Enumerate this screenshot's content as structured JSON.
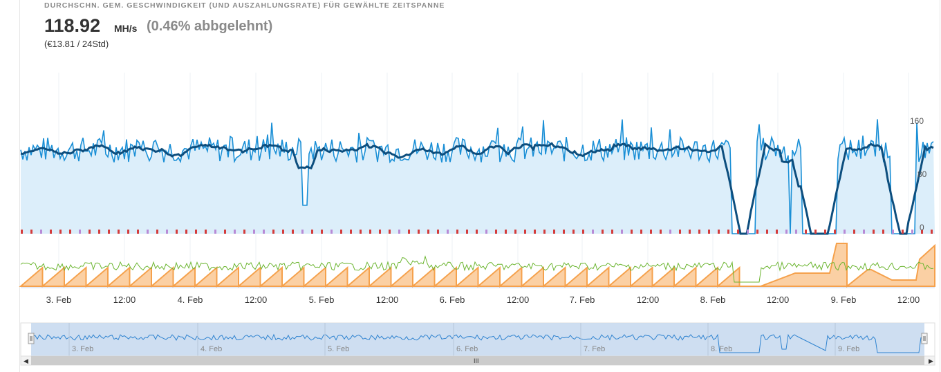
{
  "header": {
    "title": "DURCHSCHN. GEM. GESCHWINDIGKEIT (UND AUSZAHLUNGSRATE) FÜR GEWÄHLTE ZEITSPANNE",
    "speed_value": "118.92",
    "speed_unit": "MH/s",
    "rejected": "(0.46% abbgelehnt)",
    "payout": "(€13.81 / 24Std)"
  },
  "colors": {
    "hashrate_line": "#1a8fd6",
    "average_line": "#0d4e7e",
    "hashrate_fill": "#dceefa",
    "payout_area": "#f5a14c",
    "shares_line": "#6bb52f",
    "rejected_marks": "#d43c3c",
    "navigator_fill": "#c5d8ef"
  },
  "chart_data": [
    {
      "type": "line",
      "name": "hashrate",
      "series": [
        {
          "name": "",
          "values_estimated": "raw hashrate ~110-135 MH/s, dropping to 0 during gaps on 8.-9. Feb"
        },
        {
          "name": "",
          "values_estimated": "moving average ~118-125 MH/s"
        }
      ],
      "yticks": [
        0,
        80,
        160
      ],
      "ylim": [
        0,
        240
      ],
      "x_tick_labels": [
        "3. Feb",
        "12:00",
        "4. Feb",
        "12:00",
        "5. Feb",
        "12:00",
        "6. Feb",
        "12:00",
        "7. Feb",
        "12:00",
        "8. Feb",
        "12:00",
        "9. Feb",
        "12:00"
      ]
    },
    {
      "type": "area",
      "name": "payout",
      "description": "sawtooth unpaid balance (orange) with shares line (green)"
    }
  ],
  "navigator": {
    "labels": [
      "3. Feb",
      "4. Feb",
      "5. Feb",
      "6. Feb",
      "7. Feb",
      "8. Feb",
      "9. Feb"
    ],
    "scrollbar_grip": "III"
  }
}
